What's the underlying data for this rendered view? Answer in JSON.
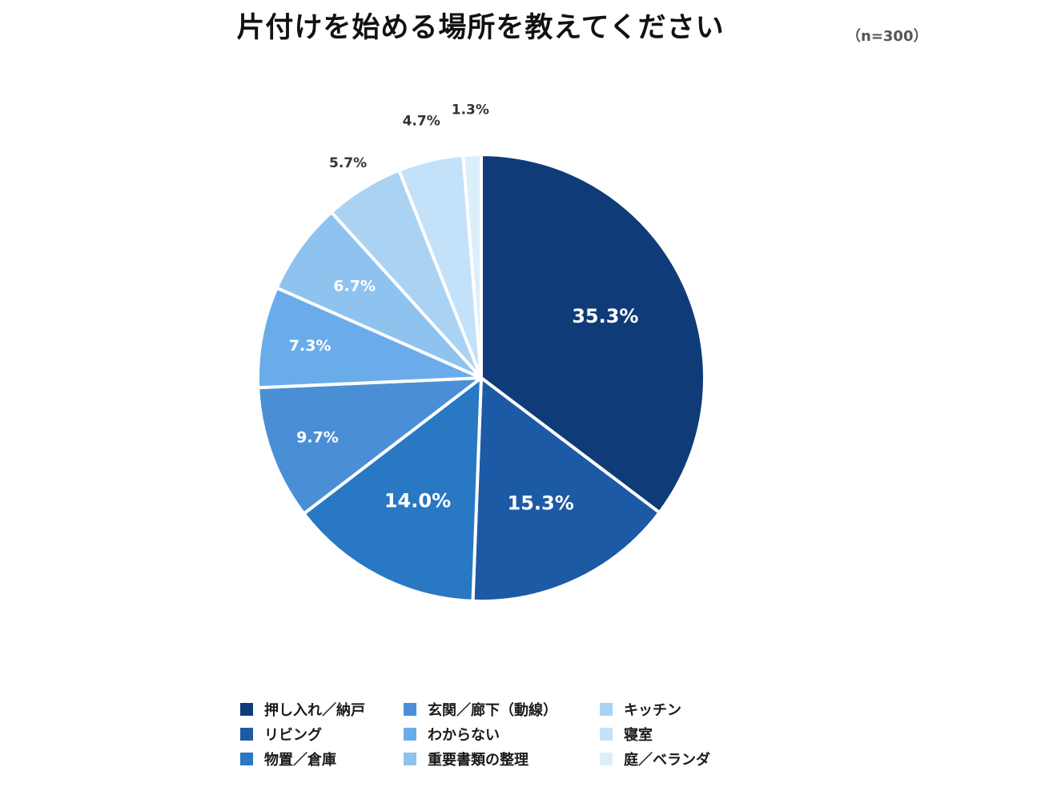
{
  "chart_data": {
    "type": "pie",
    "title": "片付けを始める場所を教えてください",
    "sample_size_label": "（n=300）",
    "categories": [
      "押し入れ／納戸",
      "リビング",
      "物置／倉庫",
      "玄関／廊下（動線）",
      "わからない",
      "重要書類の整理",
      "キッチン",
      "寝室",
      "庭／ベランダ"
    ],
    "values": [
      35.3,
      15.3,
      14.0,
      9.7,
      7.3,
      6.7,
      5.7,
      4.7,
      1.3
    ],
    "data_labels": [
      "35.3%",
      "15.3%",
      "14.0%",
      "9.7%",
      "7.3%",
      "6.7%",
      "5.7%",
      "4.7%",
      "1.3%"
    ],
    "colors": [
      "#0f3c78",
      "#1c5aa6",
      "#2878c3",
      "#4a8fd6",
      "#6aacea",
      "#8ec2ef",
      "#aad2f3",
      "#c3e1f8",
      "#ddeefb"
    ],
    "label_colors": [
      "#ffffff",
      "#ffffff",
      "#ffffff",
      "#ffffff",
      "#ffffff",
      "#ffffff",
      "#333333",
      "#333333",
      "#333333"
    ],
    "legend_placement": "bottom",
    "start_angle": "12 o'clock, clockwise"
  }
}
